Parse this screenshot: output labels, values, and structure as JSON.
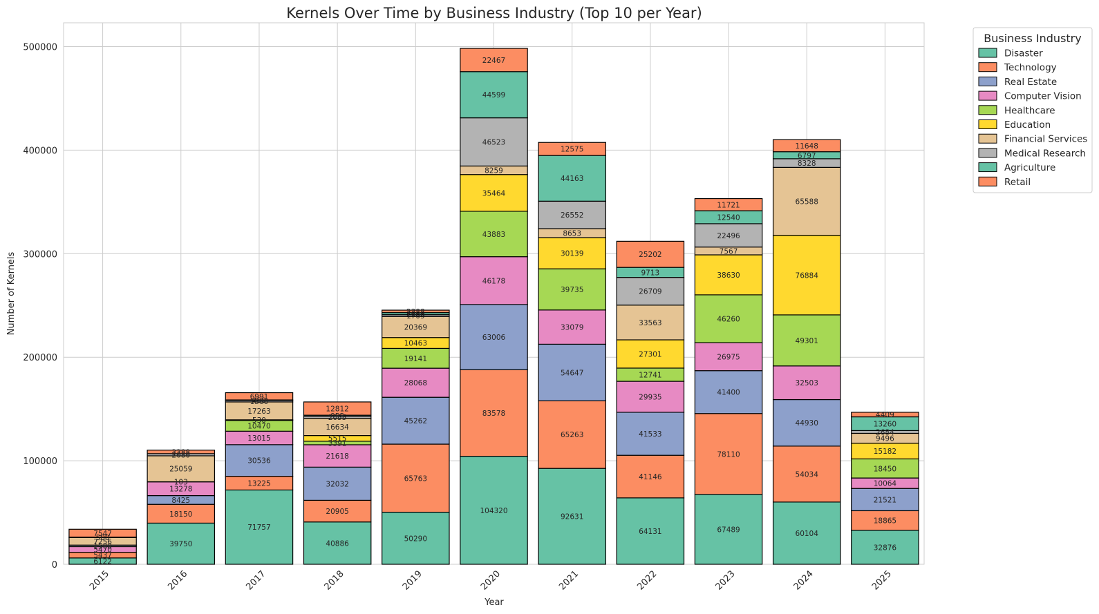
{
  "chart_data": {
    "type": "bar",
    "stacked": true,
    "title": "Kernels Over Time by Business Industry (Top 10 per Year)",
    "xlabel": "Year",
    "ylabel": "Number of Kernels",
    "ylim": [
      0,
      523000
    ],
    "yticks": [
      0,
      100000,
      200000,
      300000,
      400000,
      500000
    ],
    "ytick_labels": [
      "0",
      "100000",
      "200000",
      "300000",
      "400000",
      "500000"
    ],
    "grid": true,
    "categories": [
      "2015",
      "2016",
      "2017",
      "2018",
      "2019",
      "2020",
      "2021",
      "2022",
      "2023",
      "2024",
      "2025"
    ],
    "legend": {
      "title": "Business Industry",
      "placement": "outside-top-right",
      "entries": [
        {
          "name": "Disaster",
          "color": "#66c2a5"
        },
        {
          "name": "Technology",
          "color": "#fc8d62"
        },
        {
          "name": "Real Estate",
          "color": "#8da0cb"
        },
        {
          "name": "Computer Vision",
          "color": "#e78ac3"
        },
        {
          "name": "Healthcare",
          "color": "#a6d854"
        },
        {
          "name": "Education",
          "color": "#ffd92f"
        },
        {
          "name": "Financial Services",
          "color": "#e5c494"
        },
        {
          "name": "Medical Research",
          "color": "#b3b3b3"
        },
        {
          "name": "Agriculture",
          "color": "#66c2a5"
        },
        {
          "name": "Retail",
          "color": "#fc8d62"
        }
      ]
    },
    "stacks": [
      {
        "year": "2015",
        "segments": [
          {
            "value": 6122,
            "color": "#66c2a5",
            "label": "6122"
          },
          {
            "value": 5437,
            "color": "#fc8d62",
            "label": "5437"
          },
          {
            "value": 5470,
            "color": "#e78ac3",
            "label": "5470"
          },
          {
            "value": 1500,
            "color": "#b3b3b3",
            "label": "1500"
          },
          {
            "value": 7256,
            "color": "#e5c494",
            "label": "7256"
          },
          {
            "value": 500,
            "color": "#66c2a5",
            "label": "500"
          },
          {
            "value": 7547,
            "color": "#fc8d62",
            "label": "7547"
          }
        ]
      },
      {
        "year": "2016",
        "segments": [
          {
            "value": 39750,
            "color": "#66c2a5",
            "label": "39750"
          },
          {
            "value": 18150,
            "color": "#fc8d62",
            "label": "18150"
          },
          {
            "value": 8425,
            "color": "#8da0cb",
            "label": "8425"
          },
          {
            "value": 13278,
            "color": "#e78ac3",
            "label": "13278"
          },
          {
            "value": 103,
            "color": "#a6d854",
            "label": "103"
          },
          {
            "value": 25059,
            "color": "#e5c494",
            "label": "25059"
          },
          {
            "value": 2080,
            "color": "#b3b3b3",
            "label": "2080"
          },
          {
            "value": 3388,
            "color": "#fc8d62",
            "label": "3388"
          }
        ]
      },
      {
        "year": "2017",
        "segments": [
          {
            "value": 71757,
            "color": "#66c2a5",
            "label": "71757"
          },
          {
            "value": 13225,
            "color": "#fc8d62",
            "label": "13225"
          },
          {
            "value": 30536,
            "color": "#8da0cb",
            "label": "30536"
          },
          {
            "value": 13015,
            "color": "#e78ac3",
            "label": "13015"
          },
          {
            "value": 10470,
            "color": "#a6d854",
            "label": "10470"
          },
          {
            "value": 530,
            "color": "#ffd92f",
            "label": "530"
          },
          {
            "value": 17263,
            "color": "#e5c494",
            "label": "17263"
          },
          {
            "value": 1500,
            "color": "#b3b3b3",
            "label": "1500"
          },
          {
            "value": 450,
            "color": "#66c2a5",
            "label": "450"
          },
          {
            "value": 6991,
            "color": "#fc8d62",
            "label": "6991"
          }
        ]
      },
      {
        "year": "2018",
        "segments": [
          {
            "value": 40886,
            "color": "#66c2a5",
            "label": "40886"
          },
          {
            "value": 20905,
            "color": "#fc8d62",
            "label": "20905"
          },
          {
            "value": 32032,
            "color": "#8da0cb",
            "label": "32032"
          },
          {
            "value": 21618,
            "color": "#e78ac3",
            "label": "21618"
          },
          {
            "value": 3391,
            "color": "#a6d854",
            "label": "3391"
          },
          {
            "value": 5515,
            "color": "#ffd92f",
            "label": "5515"
          },
          {
            "value": 16634,
            "color": "#e5c494",
            "label": "16634"
          },
          {
            "value": 2055,
            "color": "#b3b3b3",
            "label": "2055"
          },
          {
            "value": 955,
            "color": "#66c2a5",
            "label": "955"
          },
          {
            "value": 12812,
            "color": "#fc8d62",
            "label": "12812"
          }
        ]
      },
      {
        "year": "2019",
        "segments": [
          {
            "value": 50290,
            "color": "#66c2a5",
            "label": "50290"
          },
          {
            "value": 65763,
            "color": "#fc8d62",
            "label": "65763"
          },
          {
            "value": 45262,
            "color": "#8da0cb",
            "label": "45262"
          },
          {
            "value": 28068,
            "color": "#e78ac3",
            "label": "28068"
          },
          {
            "value": 19141,
            "color": "#a6d854",
            "label": "19141"
          },
          {
            "value": 10463,
            "color": "#ffd92f",
            "label": "10463"
          },
          {
            "value": 20369,
            "color": "#e5c494",
            "label": "20369"
          },
          {
            "value": 1709,
            "color": "#b3b3b3",
            "label": "1709"
          },
          {
            "value": 2000,
            "color": "#66c2a5",
            "label": "2000"
          },
          {
            "value": 2388,
            "color": "#fc8d62",
            "label": "2388"
          }
        ]
      },
      {
        "year": "2020",
        "segments": [
          {
            "value": 104320,
            "color": "#66c2a5",
            "label": "104320"
          },
          {
            "value": 83578,
            "color": "#fc8d62",
            "label": "83578"
          },
          {
            "value": 63006,
            "color": "#8da0cb",
            "label": "63006"
          },
          {
            "value": 46178,
            "color": "#e78ac3",
            "label": "46178"
          },
          {
            "value": 43883,
            "color": "#a6d854",
            "label": "43883"
          },
          {
            "value": 35464,
            "color": "#ffd92f",
            "label": "35464"
          },
          {
            "value": 8259,
            "color": "#e5c494",
            "label": "8259"
          },
          {
            "value": 46523,
            "color": "#b3b3b3",
            "label": "46523"
          },
          {
            "value": 44599,
            "color": "#66c2a5",
            "label": "44599"
          },
          {
            "value": 22467,
            "color": "#fc8d62",
            "label": "22467"
          }
        ]
      },
      {
        "year": "2021",
        "segments": [
          {
            "value": 92631,
            "color": "#66c2a5",
            "label": "92631"
          },
          {
            "value": 65263,
            "color": "#fc8d62",
            "label": "65263"
          },
          {
            "value": 54647,
            "color": "#8da0cb",
            "label": "54647"
          },
          {
            "value": 33079,
            "color": "#e78ac3",
            "label": "33079"
          },
          {
            "value": 39735,
            "color": "#a6d854",
            "label": "39735"
          },
          {
            "value": 30139,
            "color": "#ffd92f",
            "label": "30139"
          },
          {
            "value": 8653,
            "color": "#e5c494",
            "label": "8653"
          },
          {
            "value": 26552,
            "color": "#b3b3b3",
            "label": "26552"
          },
          {
            "value": 44163,
            "color": "#66c2a5",
            "label": "44163"
          },
          {
            "value": 12575,
            "color": "#fc8d62",
            "label": "12575"
          }
        ]
      },
      {
        "year": "2022",
        "segments": [
          {
            "value": 64131,
            "color": "#66c2a5",
            "label": "64131"
          },
          {
            "value": 41146,
            "color": "#fc8d62",
            "label": "41146"
          },
          {
            "value": 41533,
            "color": "#8da0cb",
            "label": "41533"
          },
          {
            "value": 29935,
            "color": "#e78ac3",
            "label": "29935"
          },
          {
            "value": 12741,
            "color": "#a6d854",
            "label": "12741"
          },
          {
            "value": 27301,
            "color": "#ffd92f",
            "label": "27301"
          },
          {
            "value": 33563,
            "color": "#e5c494",
            "label": "33563"
          },
          {
            "value": 26709,
            "color": "#b3b3b3",
            "label": "26709"
          },
          {
            "value": 9713,
            "color": "#66c2a5",
            "label": "9713"
          },
          {
            "value": 25202,
            "color": "#fc8d62",
            "label": "25202"
          }
        ]
      },
      {
        "year": "2023",
        "segments": [
          {
            "value": 67489,
            "color": "#66c2a5",
            "label": "67489"
          },
          {
            "value": 78110,
            "color": "#fc8d62",
            "label": "78110"
          },
          {
            "value": 41400,
            "color": "#8da0cb",
            "label": "41400"
          },
          {
            "value": 26975,
            "color": "#e78ac3",
            "label": "26975"
          },
          {
            "value": 46260,
            "color": "#a6d854",
            "label": "46260"
          },
          {
            "value": 38630,
            "color": "#ffd92f",
            "label": "38630"
          },
          {
            "value": 7567,
            "color": "#e5c494",
            "label": "7567"
          },
          {
            "value": 22496,
            "color": "#b3b3b3",
            "label": "22496"
          },
          {
            "value": 12540,
            "color": "#66c2a5",
            "label": "12540"
          },
          {
            "value": 11721,
            "color": "#fc8d62",
            "label": "11721"
          }
        ]
      },
      {
        "year": "2024",
        "segments": [
          {
            "value": 60104,
            "color": "#66c2a5",
            "label": "60104"
          },
          {
            "value": 54034,
            "color": "#fc8d62",
            "label": "54034"
          },
          {
            "value": 44930,
            "color": "#8da0cb",
            "label": "44930"
          },
          {
            "value": 32503,
            "color": "#e78ac3",
            "label": "32503"
          },
          {
            "value": 49301,
            "color": "#a6d854",
            "label": "49301"
          },
          {
            "value": 76884,
            "color": "#ffd92f",
            "label": "76884"
          },
          {
            "value": 65588,
            "color": "#e5c494",
            "label": "65588"
          },
          {
            "value": 8328,
            "color": "#b3b3b3",
            "label": "8328"
          },
          {
            "value": 6797,
            "color": "#66c2a5",
            "label": "6797"
          },
          {
            "value": 11648,
            "color": "#fc8d62",
            "label": "11648"
          }
        ]
      },
      {
        "year": "2025",
        "segments": [
          {
            "value": 32876,
            "color": "#66c2a5",
            "label": "32876"
          },
          {
            "value": 18865,
            "color": "#fc8d62",
            "label": "18865"
          },
          {
            "value": 21521,
            "color": "#8da0cb",
            "label": "21521"
          },
          {
            "value": 10064,
            "color": "#e78ac3",
            "label": "10064"
          },
          {
            "value": 18450,
            "color": "#a6d854",
            "label": "18450"
          },
          {
            "value": 15182,
            "color": "#ffd92f",
            "label": "15182"
          },
          {
            "value": 9496,
            "color": "#e5c494",
            "label": "9496"
          },
          {
            "value": 2684,
            "color": "#b3b3b3",
            "label": "2684"
          },
          {
            "value": 13260,
            "color": "#66c2a5",
            "label": "13260"
          },
          {
            "value": 4409,
            "color": "#fc8d62",
            "label": "4409"
          }
        ]
      }
    ]
  }
}
